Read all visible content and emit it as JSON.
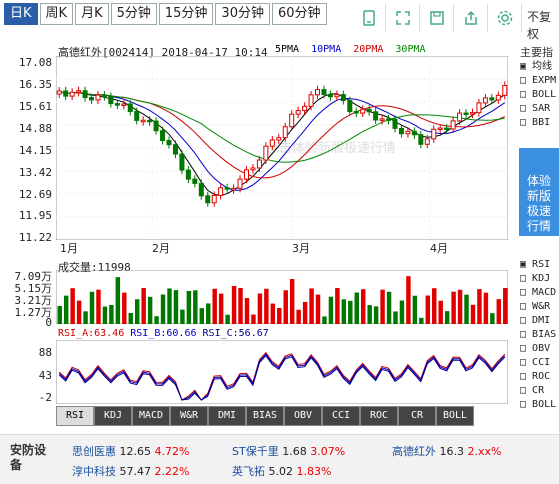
{
  "tabs": [
    "日K",
    "周K",
    "月K",
    "5分钟",
    "15分钟",
    "30分钟",
    "60分钟"
  ],
  "icons": [
    "stock-icon",
    "expand-icon",
    "save-icon",
    "share-icon",
    "settings-icon"
  ],
  "restore_label": "不复权",
  "stock": {
    "title": "高德红外[002414]",
    "datetime": "2018-04-17 10:14"
  },
  "legend": [
    {
      "label": "5PMA",
      "color": "#000000"
    },
    {
      "label": "10PMA",
      "color": "#0000cc"
    },
    {
      "label": "20PMA",
      "color": "#cc0000"
    },
    {
      "label": "30PMA",
      "color": "#008800"
    }
  ],
  "watermark": "点击体验新版极速行情",
  "y_labels": [
    "17.08",
    "16.35",
    "15.61",
    "14.88",
    "14.15",
    "13.42",
    "12.69",
    "11.95",
    "11.22"
  ],
  "x_labels": [
    "1月",
    "2月",
    "3月",
    "4月"
  ],
  "side_title": "主要指",
  "side_main": [
    "均线",
    "EXPM",
    "BOLL",
    "SAR",
    "BBI"
  ],
  "promo": [
    "体验",
    "新版",
    "极速",
    "行情"
  ],
  "side_sub": [
    "RSI",
    "KDJ",
    "MACD",
    "W&R",
    "DMI",
    "BIAS",
    "OBV",
    "CCI",
    "ROC",
    "CR",
    "BOLL"
  ],
  "volume": {
    "label": "成交量:11998",
    "y_labels": [
      "7.09万",
      "5.15万",
      "3.21万",
      "1.27万",
      "0"
    ]
  },
  "rsi": {
    "a": "RSI_A:63.46",
    "b": "RSI_B:60.66",
    "c": "RSI_C:56.67",
    "y_labels": [
      "88",
      "43",
      "-2"
    ]
  },
  "indicator_buttons": [
    "RSI",
    "KDJ",
    "MACD",
    "W&R",
    "DMI",
    "BIAS",
    "OBV",
    "CCI",
    "ROC",
    "CR",
    "BOLL"
  ],
  "ticker": {
    "label": "安防设备",
    "items": [
      {
        "name": "思创医惠",
        "price": "12.65",
        "pct": "4.72%"
      },
      {
        "name": "ST保千里",
        "price": "1.68",
        "pct": "3.07%"
      },
      {
        "name": "高德红外",
        "price": "16.3",
        "pct": "2.xx%"
      },
      {
        "name": "淳中科技",
        "price": "57.47",
        "pct": "2.22%"
      },
      {
        "name": "英飞拓",
        "price": "5.02",
        "pct": "1.83%"
      }
    ]
  },
  "colors": {
    "up": "#e00000",
    "down": "#007700",
    "tab_active": "#2a5fa8",
    "promo": "#3a8fe0"
  },
  "chart_data": [
    {
      "type": "candlestick",
      "title": "高德红外[002414]",
      "y_range": [
        11.22,
        17.08
      ],
      "x_labels": [
        "1月",
        "2月",
        "3月",
        "4月"
      ],
      "ma_series": [
        "5PMA",
        "10PMA",
        "20PMA",
        "30PMA"
      ]
    },
    {
      "type": "bar",
      "title": "成交量:11998",
      "y_range": [
        0,
        70900
      ]
    },
    {
      "type": "line",
      "series": [
        {
          "name": "RSI_A",
          "value": 63.46
        },
        {
          "name": "RSI_B",
          "value": 60.66
        },
        {
          "name": "RSI_C",
          "value": 56.67
        }
      ],
      "y_range": [
        -2,
        88
      ]
    }
  ]
}
